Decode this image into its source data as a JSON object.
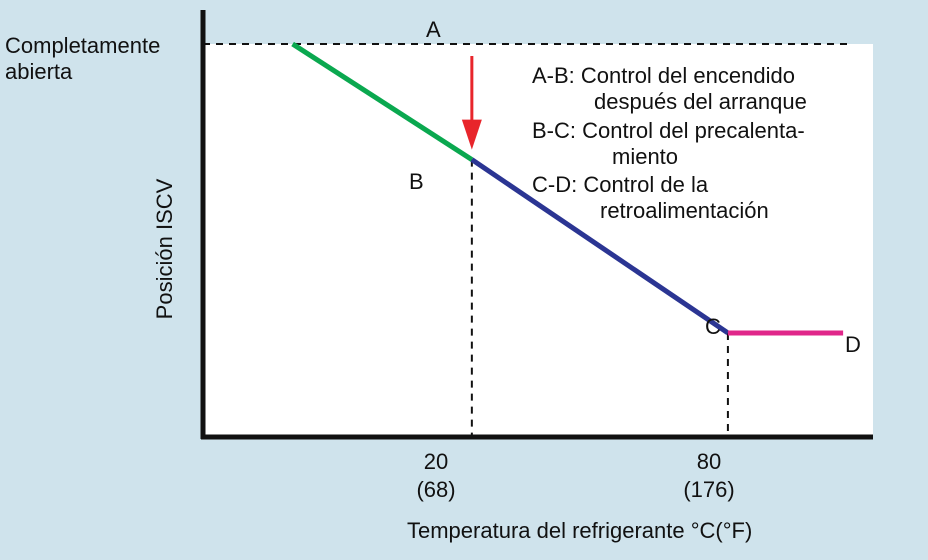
{
  "chart_data": {
    "type": "line",
    "ylabel": "Posición ISCV",
    "xlabel": "Temperatura del refrigerante °C(°F)",
    "y_top_label": [
      "Completamente",
      "abierta"
    ],
    "x_ticks": [
      {
        "value": 20,
        "line1": "20",
        "line2": "(68)"
      },
      {
        "value": 80,
        "line1": "80",
        "line2": "(176)"
      }
    ],
    "points": [
      {
        "name": "B",
        "x": 20,
        "y": 0.7
      },
      {
        "name": "C",
        "x": 80,
        "y": 0.25
      },
      {
        "name": "D",
        "x": 107,
        "y": 0.25
      }
    ],
    "start_point": {
      "x": -22,
      "y": 1.0
    },
    "arrow_label": "A",
    "segments": [
      {
        "name": "A-B",
        "from": "start",
        "to": "B",
        "color": "#0aa84f"
      },
      {
        "name": "B-C",
        "from": "B",
        "to": "C",
        "color": "#2b3593"
      },
      {
        "name": "C-D",
        "from": "C",
        "to": "D",
        "color": "#e0278a"
      }
    ],
    "xlim": [
      -43,
      114
    ],
    "ylim": [
      -0.02,
      1.0
    ],
    "grid": false,
    "legend": [
      "A-B: Control del encendido",
      "después del arranque",
      "B-C: Control del precalenta-",
      "miento",
      "C-D: Control de la",
      "retroalimentación"
    ],
    "colors": {
      "arrow": "#e8252b",
      "axis": "#111111",
      "background": "#cfe3ec",
      "plot_bg": "#ffffff"
    }
  }
}
